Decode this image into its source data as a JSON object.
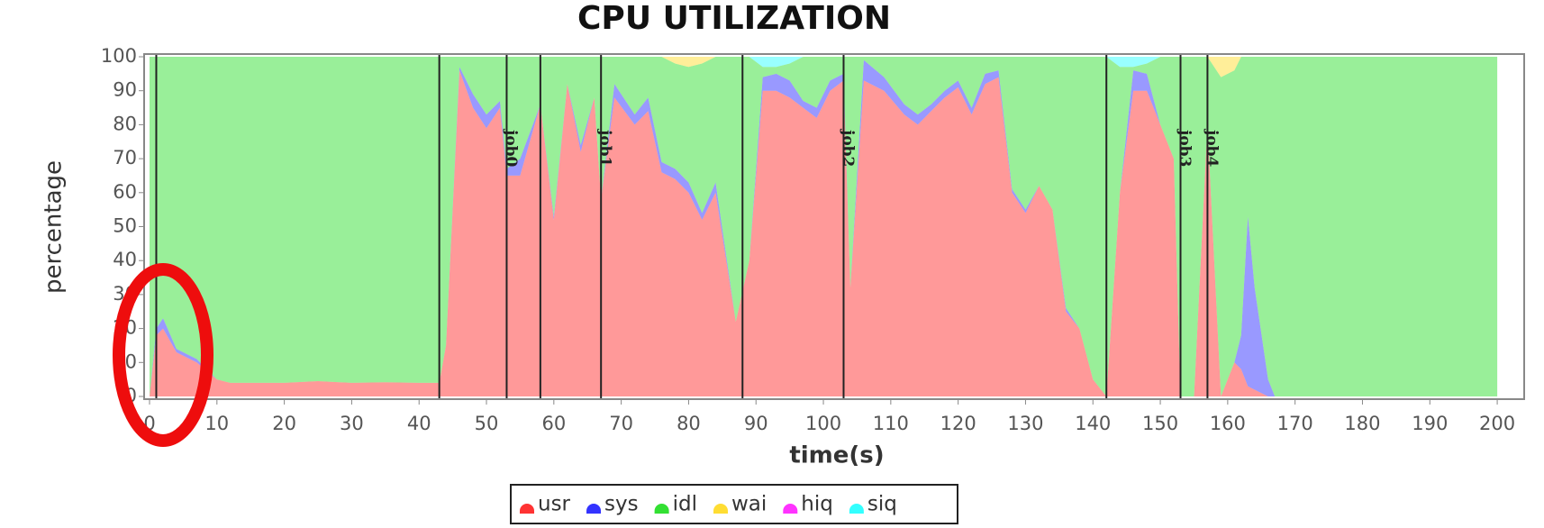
{
  "chart_data": {
    "type": "stacked_area",
    "title": "CPU UTILIZATION",
    "xlabel": "time(s)",
    "ylabel": "percentage",
    "x": [
      0,
      1,
      2,
      4,
      7,
      10,
      12,
      20,
      25,
      30,
      35,
      40,
      43,
      44,
      46,
      48,
      50,
      52,
      53,
      55,
      58,
      60,
      62,
      64,
      66,
      67,
      69,
      72,
      74,
      76,
      78,
      80,
      82,
      84,
      87,
      89,
      91,
      93,
      95,
      97,
      99,
      101,
      103,
      104,
      106,
      109,
      112,
      114,
      116,
      118,
      120,
      122,
      124,
      126,
      128,
      130,
      132,
      134,
      136,
      138,
      140,
      142,
      144,
      146,
      148,
      150,
      152,
      153,
      155,
      157,
      159,
      161,
      162,
      163,
      164,
      166,
      167,
      170,
      200
    ],
    "series": [
      {
        "name": "usr",
        "color": "#ff3333",
        "values": [
          0,
          18,
          20,
          13,
          10,
          5,
          4,
          4,
          4.5,
          4,
          4.2,
          4,
          4,
          15,
          96,
          85,
          79,
          85,
          65,
          65,
          86,
          52,
          92,
          72,
          88,
          58,
          88,
          80,
          84,
          66,
          64,
          60,
          52,
          60,
          22,
          40,
          90,
          90,
          88,
          85,
          82,
          90,
          93,
          32,
          93,
          90,
          83,
          80,
          84,
          88,
          91,
          83,
          92,
          94,
          60,
          54,
          62,
          55,
          25,
          20,
          5,
          0,
          60,
          90,
          90,
          80,
          70,
          0,
          0,
          80,
          0,
          10,
          8,
          3,
          2,
          0,
          0,
          0,
          0
        ]
      },
      {
        "name": "sys",
        "color": "#3333ff",
        "values": [
          0,
          2,
          3,
          1,
          1,
          0,
          0,
          0,
          0,
          0,
          0,
          0,
          0,
          0,
          1,
          4,
          4,
          2,
          2,
          5,
          0,
          1,
          0,
          2,
          0,
          0,
          4,
          3,
          4,
          3,
          3,
          3,
          2,
          3,
          0,
          0,
          4,
          5,
          5,
          2,
          3,
          3,
          2,
          0,
          6,
          4,
          3,
          3,
          2,
          2,
          2,
          2,
          3,
          2,
          1,
          1,
          0,
          0,
          1,
          0,
          0,
          0,
          0,
          6,
          5,
          0,
          0,
          0,
          0,
          0,
          0,
          0,
          10,
          50,
          30,
          5,
          0,
          0,
          0
        ]
      },
      {
        "name": "idl",
        "color": "#33e033",
        "values": [
          100,
          80,
          77,
          86,
          89,
          95,
          96,
          96,
          95.5,
          96,
          95.8,
          96,
          96,
          85,
          3,
          11,
          17,
          13,
          33,
          30,
          14,
          47,
          8,
          26,
          12,
          42,
          8,
          17,
          12,
          31,
          31,
          34,
          44,
          37,
          78,
          60,
          3,
          2,
          5,
          13,
          15,
          7,
          5,
          68,
          1,
          6,
          14,
          17,
          14,
          10,
          7,
          15,
          5,
          4,
          39,
          45,
          38,
          45,
          74,
          80,
          95,
          100,
          37,
          1,
          3,
          20,
          30,
          100,
          100,
          20,
          94,
          86,
          82,
          47,
          68,
          95,
          100,
          100,
          100
        ]
      },
      {
        "name": "wai",
        "color": "#ffdd33",
        "values": [
          0,
          0,
          0,
          0,
          0,
          0,
          0,
          0,
          0,
          0,
          0,
          0,
          0,
          0,
          0,
          0,
          0,
          0,
          0,
          0,
          0,
          0,
          0,
          0,
          0,
          0,
          0,
          0,
          0,
          0,
          2,
          3,
          2,
          0,
          0,
          0,
          0,
          0,
          0,
          0,
          0,
          0,
          0,
          0,
          0,
          0,
          0,
          0,
          0,
          0,
          0,
          0,
          0,
          0,
          0,
          0,
          0,
          0,
          0,
          0,
          0,
          0,
          0,
          0,
          0,
          0,
          0,
          0,
          0,
          0,
          6,
          4,
          0,
          0,
          0,
          0,
          0,
          0,
          0
        ]
      },
      {
        "name": "hiq",
        "color": "#ff33ff",
        "values": [
          0,
          0,
          0,
          0,
          0,
          0,
          0,
          0,
          0,
          0,
          0,
          0,
          0,
          0,
          0,
          0,
          0,
          0,
          0,
          0,
          0,
          0,
          0,
          0,
          0,
          0,
          0,
          0,
          0,
          0,
          0,
          0,
          0,
          0,
          0,
          0,
          0,
          0,
          0,
          0,
          0,
          0,
          0,
          0,
          0,
          0,
          0,
          0,
          0,
          0,
          0,
          0,
          0,
          0,
          0,
          0,
          0,
          0,
          0,
          0,
          0,
          0,
          0,
          0,
          0,
          0,
          0,
          0,
          0,
          0,
          0,
          0,
          0,
          0,
          0,
          0,
          0,
          0,
          0
        ]
      },
      {
        "name": "siq",
        "color": "#33ffff",
        "values": [
          0,
          0,
          0,
          0,
          0,
          0,
          0,
          0,
          0,
          0,
          0,
          0,
          0,
          0,
          0,
          0,
          0,
          0,
          0,
          0,
          0,
          0,
          0,
          0,
          0,
          0,
          0,
          0,
          0,
          0,
          0,
          0,
          0,
          0,
          0,
          0,
          3,
          3,
          2,
          0,
          0,
          0,
          0,
          0,
          0,
          0,
          0,
          0,
          0,
          0,
          0,
          0,
          0,
          0,
          0,
          0,
          0,
          0,
          0,
          0,
          0,
          0,
          3,
          3,
          2,
          0,
          0,
          0,
          0,
          0,
          0,
          0,
          0,
          0,
          0,
          0,
          0,
          0,
          0
        ]
      }
    ],
    "events": [
      {
        "x": 1
      },
      {
        "x": 43
      },
      {
        "x": 53,
        "label": "job0"
      },
      {
        "x": 58
      },
      {
        "x": 67,
        "label": "job1"
      },
      {
        "x": 88
      },
      {
        "x": 103,
        "label": "job2"
      },
      {
        "x": 142
      },
      {
        "x": 153,
        "label": "job3"
      },
      {
        "x": 157,
        "label": "job4"
      }
    ],
    "xlim": [
      0,
      204
    ],
    "ylim": [
      0,
      100
    ],
    "xticks": [
      0,
      10,
      20,
      30,
      40,
      50,
      60,
      70,
      80,
      90,
      100,
      110,
      120,
      130,
      140,
      150,
      160,
      170,
      180,
      190,
      200
    ],
    "yticks": [
      0,
      10,
      20,
      30,
      40,
      50,
      60,
      70,
      80,
      90,
      100
    ],
    "fill_opacity": 0.5
  }
}
